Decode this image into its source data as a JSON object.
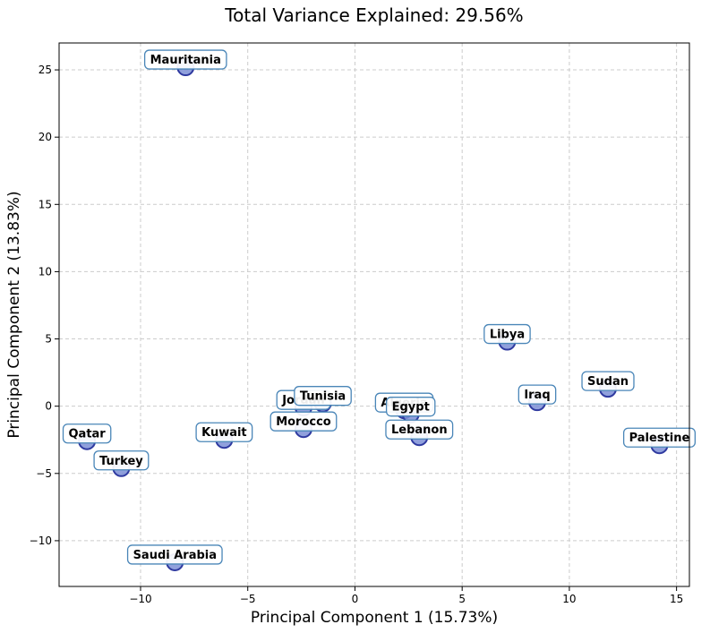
{
  "chart_data": {
    "type": "scatter",
    "title": "Total Variance Explained: 29.56%",
    "xlabel": "Principal Component 1 (15.73%)",
    "ylabel": "Principal Component 2 (13.83%)",
    "xlim": [
      -13.8,
      15.6
    ],
    "ylim": [
      -13.4,
      27.0
    ],
    "xticks": [
      -10,
      -5,
      0,
      5,
      10,
      15
    ],
    "xtick_labels": [
      "−10",
      "−5",
      "0",
      "5",
      "10",
      "15"
    ],
    "yticks": [
      -10,
      -5,
      0,
      5,
      10,
      15,
      20,
      25
    ],
    "ytick_labels": [
      "−10",
      "−5",
      "0",
      "5",
      "10",
      "15",
      "20",
      "25"
    ],
    "grid": true,
    "marker_fill": "#7d8fd6",
    "marker_edge": "#2f3aa0",
    "label_border": "#4a86b8",
    "points": [
      {
        "name": "Mauritania",
        "x": -7.9,
        "y": 25.2
      },
      {
        "name": "Libya",
        "x": 7.1,
        "y": 4.8
      },
      {
        "name": "Sudan",
        "x": 11.8,
        "y": 1.3
      },
      {
        "name": "Iraq",
        "x": 8.5,
        "y": 0.3
      },
      {
        "name": "Jordan",
        "x": -2.4,
        "y": -0.1
      },
      {
        "name": "Tunisia",
        "x": -1.5,
        "y": 0.2
      },
      {
        "name": "Algeria",
        "x": 2.3,
        "y": -0.3
      },
      {
        "name": "Egypt",
        "x": 2.6,
        "y": -0.6
      },
      {
        "name": "Morocco",
        "x": -2.4,
        "y": -1.7
      },
      {
        "name": "Lebanon",
        "x": 3.0,
        "y": -2.3
      },
      {
        "name": "Kuwait",
        "x": -6.1,
        "y": -2.5
      },
      {
        "name": "Qatar",
        "x": -12.5,
        "y": -2.6
      },
      {
        "name": "Palestine",
        "x": 14.2,
        "y": -2.9
      },
      {
        "name": "Turkey",
        "x": -10.9,
        "y": -4.6
      },
      {
        "name": "Saudi Arabia",
        "x": -8.4,
        "y": -11.6
      }
    ]
  }
}
